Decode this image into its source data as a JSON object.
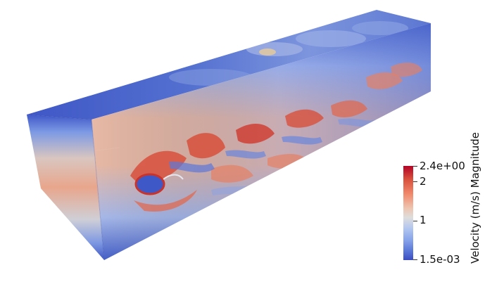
{
  "colorbar": {
    "title": "Velocity (m/s) Magnitude",
    "max_label": "2.4e+00",
    "tick_2": "2",
    "tick_1": "1",
    "min_label": "1.5e-03",
    "colormap": [
      "#3b4cc0",
      "#5b78d8",
      "#8aa6ea",
      "#b3c7ef",
      "#dddddd",
      "#eec5b0",
      "#f08a6d",
      "#d8503c",
      "#b40426"
    ]
  },
  "scene": {
    "object": "box",
    "colors": {
      "low": "#3b4cc0",
      "mid_low": "#6b8ae0",
      "mid": "#b8c6ee",
      "neutral": "#d9d4d2",
      "mid_high": "#ec9a7e",
      "high": "#c8342c"
    }
  }
}
